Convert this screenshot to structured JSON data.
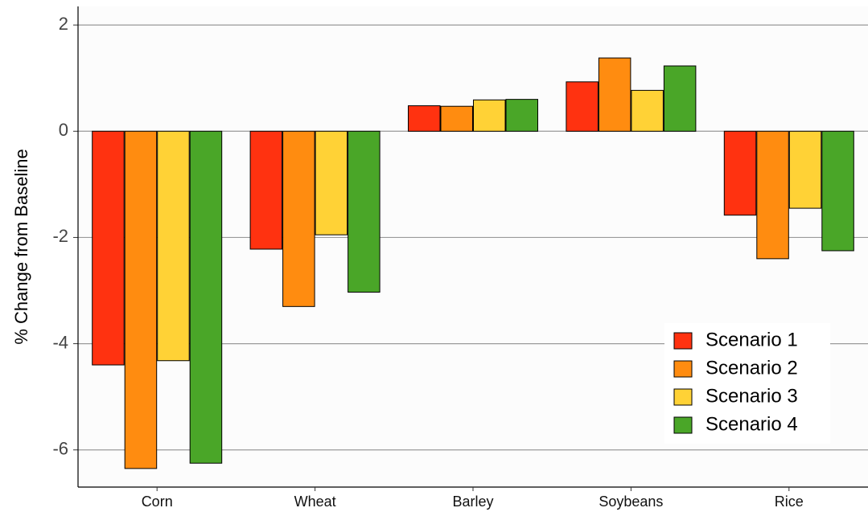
{
  "chart_data": {
    "type": "bar",
    "title": "",
    "xlabel": "",
    "ylabel": "% Change from Baseline",
    "categories": [
      "Corn",
      "Wheat",
      "Barley",
      "Soybeans",
      "Rice"
    ],
    "series": [
      {
        "name": "Scenario 1",
        "color": "#ff3210",
        "values": [
          -4.4,
          -2.22,
          0.48,
          0.93,
          -1.58
        ]
      },
      {
        "name": "Scenario 2",
        "color": "#ff8c10",
        "values": [
          -6.35,
          -3.3,
          0.47,
          1.38,
          -2.4
        ]
      },
      {
        "name": "Scenario 3",
        "color": "#ffd236",
        "values": [
          -4.32,
          -1.95,
          0.59,
          0.77,
          -1.45
        ]
      },
      {
        "name": "Scenario 4",
        "color": "#4aa628",
        "values": [
          -6.25,
          -3.03,
          0.6,
          1.23,
          -2.25
        ]
      }
    ],
    "ylim": [
      -6.7,
      2.35
    ],
    "yticks": [
      -6,
      -4,
      -2,
      0,
      2
    ],
    "grid": "horizontal",
    "legend_position": "bottom-right"
  }
}
